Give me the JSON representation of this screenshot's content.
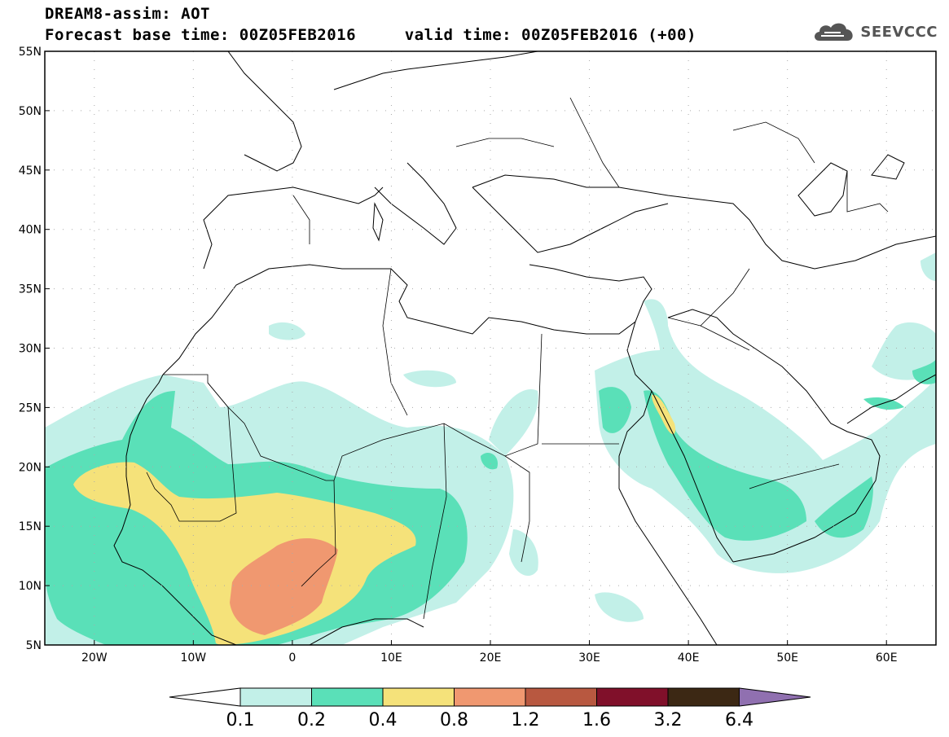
{
  "header": {
    "title": "DREAM8-assim: AOT",
    "subtitle": "Forecast base time: 00Z05FEB2016     valid time: 00Z05FEB2016 (+00)",
    "logo_text": "SEEVCCC",
    "logo_icon": "cloud-icon"
  },
  "map": {
    "lon_range": [
      -25,
      65
    ],
    "lat_range": [
      5,
      55
    ],
    "lon_ticks": [
      {
        "value": -20,
        "label": "20W"
      },
      {
        "value": -10,
        "label": "10W"
      },
      {
        "value": 0,
        "label": "0"
      },
      {
        "value": 10,
        "label": "10E"
      },
      {
        "value": 20,
        "label": "20E"
      },
      {
        "value": 30,
        "label": "30E"
      },
      {
        "value": 40,
        "label": "40E"
      },
      {
        "value": 50,
        "label": "50E"
      },
      {
        "value": 60,
        "label": "60E"
      }
    ],
    "lat_ticks": [
      {
        "value": 5,
        "label": "5N"
      },
      {
        "value": 10,
        "label": "10N"
      },
      {
        "value": 15,
        "label": "15N"
      },
      {
        "value": 20,
        "label": "20N"
      },
      {
        "value": 25,
        "label": "25N"
      },
      {
        "value": 30,
        "label": "30N"
      },
      {
        "value": 35,
        "label": "35N"
      },
      {
        "value": 40,
        "label": "40N"
      },
      {
        "value": 45,
        "label": "45N"
      },
      {
        "value": 50,
        "label": "50N"
      },
      {
        "value": 55,
        "label": "55N"
      }
    ],
    "grid": "dotted"
  },
  "colorbar": {
    "colors": [
      "#ffffff",
      "#c2f0e8",
      "#5ae0b8",
      "#f5e27a",
      "#f09870",
      "#b85840",
      "#80102a",
      "#3c2814",
      "#9070b0"
    ],
    "thresholds": [
      "0.1",
      "0.2",
      "0.4",
      "0.8",
      "1.2",
      "1.6",
      "3.2",
      "6.4"
    ]
  }
}
